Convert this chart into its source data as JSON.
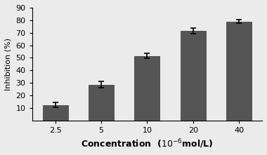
{
  "categories": [
    "2.5",
    "5",
    "10",
    "20",
    "40"
  ],
  "values": [
    12.5,
    28.5,
    51.5,
    71.5,
    79.0
  ],
  "errors": [
    1.8,
    2.5,
    2.0,
    2.2,
    1.5
  ],
  "bar_color": "#555555",
  "bar_width": 0.55,
  "xlabel": "Concentration  (10",
  "xlabel_super": "-6",
  "xlabel_suffix": "mol/L)",
  "ylabel": "Inhibition (%)",
  "ylim": [
    0,
    90
  ],
  "yticks": [
    10,
    20,
    30,
    40,
    50,
    60,
    70,
    80,
    90
  ],
  "title": "",
  "background_color": "#ebebeb",
  "figsize": [
    3.8,
    2.21
  ],
  "dpi": 100
}
